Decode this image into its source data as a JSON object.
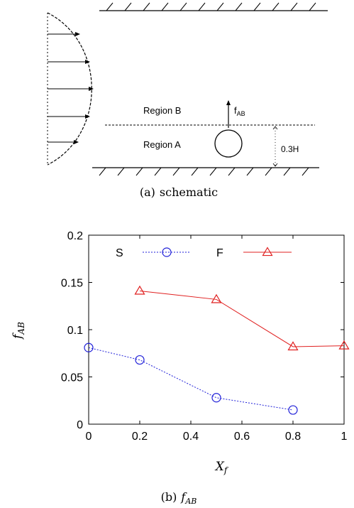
{
  "figure_a": {
    "label_region_b": "Region B",
    "label_region_a": "Region A",
    "force_label": "f",
    "force_sub": "AB",
    "height_label": "0.3H",
    "caption_tag": "(a)",
    "caption_text": "schematic"
  },
  "figure_b": {
    "caption_tag": "(b)",
    "caption_math": "f",
    "caption_sub": "AB"
  },
  "chart_data": {
    "type": "line",
    "xlabel": "X",
    "xlabel_sub": "f",
    "ylabel": "f",
    "ylabel_sub": "AB",
    "xlim": [
      0,
      1
    ],
    "ylim": [
      0,
      0.2
    ],
    "xticks": [
      "0",
      "0.2",
      "0.4",
      "0.6",
      "0.8",
      "1"
    ],
    "yticks": [
      "0",
      "0.05",
      "0.1",
      "0.15",
      "0.2"
    ],
    "legend_position": "top",
    "series": [
      {
        "name": "S",
        "color": "#1f1fd8",
        "marker": "circle",
        "line": "dotted",
        "x": [
          0,
          0.2,
          0.5,
          0.8
        ],
        "y": [
          0.081,
          0.068,
          0.028,
          0.015
        ]
      },
      {
        "name": "F",
        "color": "#e02020",
        "marker": "triangle",
        "line": "solid",
        "x": [
          0.2,
          0.5,
          0.8,
          1.0
        ],
        "y": [
          0.141,
          0.132,
          0.082,
          0.083
        ]
      }
    ]
  }
}
